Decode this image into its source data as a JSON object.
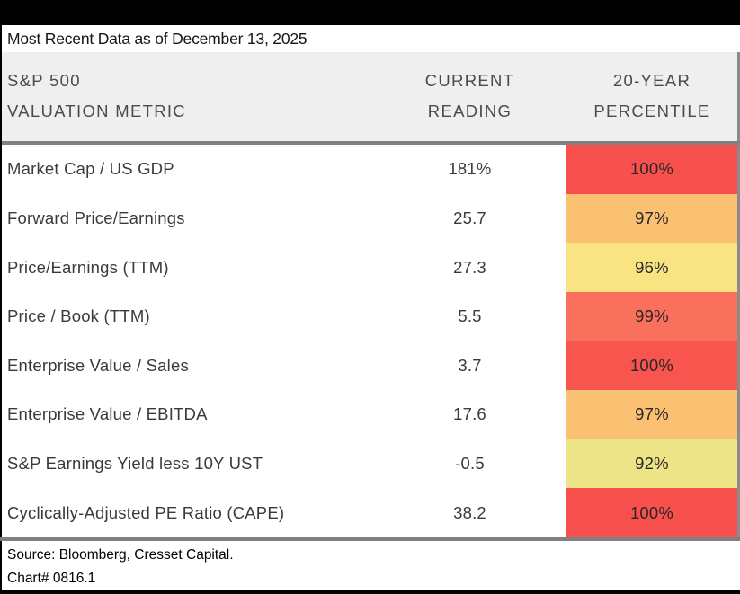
{
  "title": "Most Recent Data as of December 13, 2025",
  "table": {
    "header": {
      "metric_line1": "S&P 500",
      "metric_line2": "VALUATION METRIC",
      "reading_line1": "CURRENT",
      "reading_line2": "READING",
      "pct_line1": "20-YEAR",
      "pct_line2": "PERCENTILE"
    },
    "rows": [
      {
        "metric": "Market Cap / US GDP",
        "reading": "181%",
        "percentile": "100%",
        "color": "#F8504D"
      },
      {
        "metric": "Forward Price/Earnings",
        "reading": "25.7",
        "percentile": "97%",
        "color": "#FAC172"
      },
      {
        "metric": "Price/Earnings (TTM)",
        "reading": "27.3",
        "percentile": "96%",
        "color": "#F8E483"
      },
      {
        "metric": "Price / Book (TTM)",
        "reading": "5.5",
        "percentile": "99%",
        "color": "#F9705C"
      },
      {
        "metric": "Enterprise Value / Sales",
        "reading": "3.7",
        "percentile": "100%",
        "color": "#F8554E"
      },
      {
        "metric": "Enterprise Value / EBITDA",
        "reading": "17.6",
        "percentile": "97%",
        "color": "#FAC172"
      },
      {
        "metric": "S&P Earnings Yield less 10Y UST",
        "reading": "-0.5",
        "percentile": "92%",
        "color": "#EDE387"
      },
      {
        "metric": "Cyclically-Adjusted PE Ratio (CAPE)",
        "reading": "38.2",
        "percentile": "100%",
        "color": "#F8504D"
      }
    ]
  },
  "footer": {
    "source": "Source: Bloomberg, Cresset Capital.",
    "chart_no": "Chart# 0816.1"
  },
  "colors": {
    "top_bar": "#000000",
    "header_bg": "#f0efef",
    "divider_gray": "#808080",
    "pct_100": "#F8504D",
    "pct_99": "#F9705C",
    "pct_97": "#FAC172",
    "pct_96": "#F8E483",
    "pct_92": "#EDE387"
  },
  "chart_data": {
    "type": "table",
    "title": "Most Recent Data as of December 13, 2025",
    "columns": [
      "S&P 500 VALUATION METRIC",
      "CURRENT READING",
      "20-YEAR PERCENTILE"
    ],
    "rows": [
      [
        "Market Cap / US GDP",
        "181%",
        "100%"
      ],
      [
        "Forward Price/Earnings",
        "25.7",
        "97%"
      ],
      [
        "Price/Earnings (TTM)",
        "27.3",
        "96%"
      ],
      [
        "Price / Book (TTM)",
        "5.5",
        "99%"
      ],
      [
        "Enterprise Value / Sales",
        "3.7",
        "100%"
      ],
      [
        "Enterprise Value / EBITDA",
        "17.6",
        "97%"
      ],
      [
        "S&P Earnings Yield less 10Y UST",
        "-0.5",
        "92%"
      ],
      [
        "Cyclically-Adjusted PE Ratio (CAPE)",
        "38.2",
        "100%"
      ]
    ],
    "notes": "20-Year Percentile cells are heat-colored from yellow (lower percentile) to red (100th percentile)",
    "source": "Source: Bloomberg, Cresset Capital.",
    "chart_id": "Chart# 0816.1"
  }
}
